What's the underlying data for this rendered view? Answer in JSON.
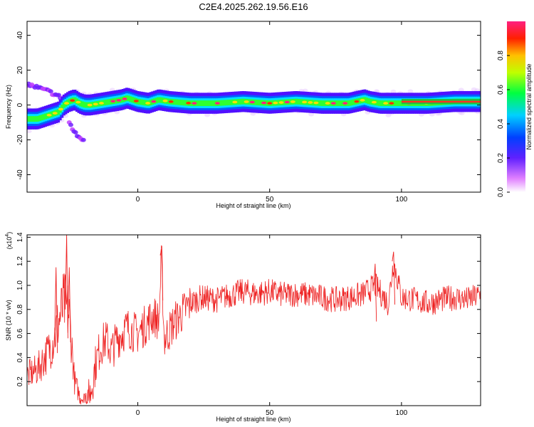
{
  "title": "C2E4.2025.262.19.56.E16",
  "chart_data": [
    {
      "type": "heatmap",
      "xlabel": "Height of straight line (km)",
      "ylabel": "Frequency (Hz)",
      "xlim": [
        -42,
        130
      ],
      "ylim": [
        -50,
        48
      ],
      "x_ticks": [
        0,
        50,
        100
      ],
      "y_ticks": [
        -40,
        -20,
        0,
        20,
        40
      ],
      "colorbar": {
        "label": "Normalized spectral amplitude",
        "range": [
          0,
          1
        ],
        "ticks": [
          "0.0",
          "0.2",
          "0.4",
          "0.6",
          "0.8"
        ],
        "colors": [
          "#ffffff",
          "#d020ff",
          "#4000ff",
          "#00c0ff",
          "#00ff40",
          "#ffff00",
          "#ff2000",
          "#ff2080"
        ]
      },
      "ridge": {
        "x": [
          -42,
          -38,
          -34,
          -30,
          -28,
          -26,
          -24,
          -22,
          -20,
          -18,
          -14,
          -10,
          -6,
          -4,
          0,
          4,
          8,
          12,
          20,
          30,
          40,
          50,
          60,
          70,
          80,
          86,
          88,
          92,
          100,
          110,
          120,
          130
        ],
        "y": [
          -8,
          -8,
          -6,
          -4,
          0,
          2,
          3,
          1,
          0,
          0,
          1,
          2,
          3,
          4,
          2,
          1,
          3,
          2,
          1,
          1,
          2,
          1,
          2,
          1,
          1,
          3,
          2,
          1,
          1,
          1,
          2,
          2
        ]
      },
      "branches": [
        {
          "x": [
            -42,
            -38,
            -34,
            -30,
            -27
          ],
          "y": [
            12,
            10,
            8,
            5,
            3
          ]
        },
        {
          "x": [
            -26,
            -24,
            -22,
            -20
          ],
          "y": [
            -10,
            -16,
            -19,
            -20
          ]
        }
      ]
    },
    {
      "type": "line",
      "xlabel": "Height of straight line (km)",
      "ylabel": "SNR (10 * v/v)",
      "y_multiplier": "(x10",
      "y_multiplier_exp": "4",
      "xlim": [
        -42,
        130
      ],
      "ylim": [
        0,
        1.42
      ],
      "x_ticks": [
        0,
        50,
        100
      ],
      "y_ticks": [
        "0.2",
        "0.4",
        "0.6",
        "0.8",
        "1.0",
        "1.2",
        "1.4"
      ],
      "line_color": "#ee2222",
      "series": {
        "x": [
          -42,
          -38,
          -34,
          -32,
          -30,
          -28,
          -26,
          -25,
          -24,
          -22,
          -20,
          -18,
          -16,
          -14,
          -12,
          -10,
          -8,
          -6,
          -4,
          -2,
          0,
          2,
          4,
          6,
          8,
          9,
          10,
          14,
          18,
          20,
          24,
          30,
          35,
          40,
          45,
          50,
          55,
          60,
          65,
          70,
          75,
          80,
          85,
          90,
          95,
          97,
          100,
          105,
          110,
          115,
          120,
          125,
          130
        ],
        "y": [
          0.25,
          0.3,
          0.45,
          0.55,
          0.7,
          0.85,
          0.75,
          0.5,
          0.2,
          0.08,
          0.05,
          0.1,
          0.35,
          0.5,
          0.55,
          0.45,
          0.55,
          0.6,
          0.65,
          0.62,
          0.6,
          0.65,
          0.7,
          0.75,
          0.7,
          1.25,
          0.55,
          0.7,
          0.8,
          0.85,
          0.9,
          0.88,
          0.92,
          0.95,
          0.93,
          0.95,
          0.92,
          0.93,
          0.92,
          0.9,
          0.88,
          0.9,
          0.92,
          1.0,
          0.85,
          1.2,
          0.9,
          0.88,
          0.85,
          0.88,
          0.9,
          0.88,
          0.92
        ]
      },
      "peaks": [
        {
          "x": -27,
          "y": 1.42
        },
        {
          "x": -26,
          "y": 1.15
        },
        {
          "x": -31,
          "y": 1.15
        },
        {
          "x": 9,
          "y": 1.3
        },
        {
          "x": 97,
          "y": 1.28
        },
        {
          "x": 90,
          "y": 1.18
        }
      ]
    }
  ]
}
